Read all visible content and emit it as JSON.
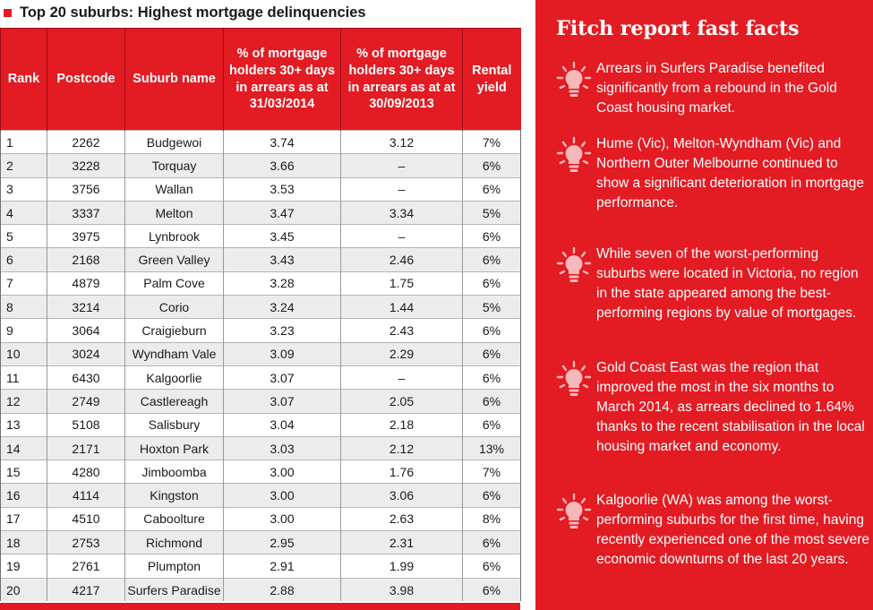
{
  "table_title": "Top 20 suburbs: Highest mortgage delinquencies",
  "columns": {
    "rank": "Rank",
    "postcode": "Postcode",
    "suburb": "Suburb name",
    "pct_2014": "% of mortgage holders 30+ days in arrears as at 31/03/2014",
    "pct_2013": "% of mortgage holders 30+ days in arrears as at at 30/09/2013",
    "rental": "Rental yield"
  },
  "rows": [
    {
      "rank": "1",
      "postcode": "2262",
      "suburb": "Budgewoi",
      "pct_2014": "3.74",
      "pct_2013": "3.12",
      "rental": "7%"
    },
    {
      "rank": "2",
      "postcode": "3228",
      "suburb": "Torquay",
      "pct_2014": "3.66",
      "pct_2013": "–",
      "rental": "6%"
    },
    {
      "rank": "3",
      "postcode": "3756",
      "suburb": "Wallan",
      "pct_2014": "3.53",
      "pct_2013": "–",
      "rental": "6%"
    },
    {
      "rank": "4",
      "postcode": "3337",
      "suburb": "Melton",
      "pct_2014": "3.47",
      "pct_2013": "3.34",
      "rental": "5%"
    },
    {
      "rank": "5",
      "postcode": "3975",
      "suburb": "Lynbrook",
      "pct_2014": "3.45",
      "pct_2013": "–",
      "rental": "6%"
    },
    {
      "rank": "6",
      "postcode": "2168",
      "suburb": "Green Valley",
      "pct_2014": "3.43",
      "pct_2013": "2.46",
      "rental": "6%"
    },
    {
      "rank": "7",
      "postcode": "4879",
      "suburb": "Palm Cove",
      "pct_2014": "3.28",
      "pct_2013": "1.75",
      "rental": "6%"
    },
    {
      "rank": "8",
      "postcode": "3214",
      "suburb": "Corio",
      "pct_2014": "3.24",
      "pct_2013": "1.44",
      "rental": "5%"
    },
    {
      "rank": "9",
      "postcode": "3064",
      "suburb": "Craigieburn",
      "pct_2014": "3.23",
      "pct_2013": "2.43",
      "rental": "6%"
    },
    {
      "rank": "10",
      "postcode": "3024",
      "suburb": "Wyndham Vale",
      "pct_2014": "3.09",
      "pct_2013": "2.29",
      "rental": "6%"
    },
    {
      "rank": "11",
      "postcode": "6430",
      "suburb": "Kalgoorlie",
      "pct_2014": "3.07",
      "pct_2013": "–",
      "rental": "6%"
    },
    {
      "rank": "12",
      "postcode": "2749",
      "suburb": "Castlereagh",
      "pct_2014": "3.07",
      "pct_2013": "2.05",
      "rental": "6%"
    },
    {
      "rank": "13",
      "postcode": "5108",
      "suburb": "Salisbury",
      "pct_2014": "3.04",
      "pct_2013": "2.18",
      "rental": "6%"
    },
    {
      "rank": "14",
      "postcode": "2171",
      "suburb": "Hoxton Park",
      "pct_2014": "3.03",
      "pct_2013": "2.12",
      "rental": "13%"
    },
    {
      "rank": "15",
      "postcode": "4280",
      "suburb": "Jimboomba",
      "pct_2014": "3.00",
      "pct_2013": "1.76",
      "rental": "7%"
    },
    {
      "rank": "16",
      "postcode": "4114",
      "suburb": "Kingston",
      "pct_2014": "3.00",
      "pct_2013": "3.06",
      "rental": "6%"
    },
    {
      "rank": "17",
      "postcode": "4510",
      "suburb": "Caboolture",
      "pct_2014": "3.00",
      "pct_2013": "2.63",
      "rental": "8%"
    },
    {
      "rank": "18",
      "postcode": "2753",
      "suburb": "Richmond",
      "pct_2014": "2.95",
      "pct_2013": "2.31",
      "rental": "6%"
    },
    {
      "rank": "19",
      "postcode": "2761",
      "suburb": "Plumpton",
      "pct_2014": "2.91",
      "pct_2013": "1.99",
      "rental": "6%"
    },
    {
      "rank": "20",
      "postcode": "4217",
      "suburb": "Surfers Paradise",
      "pct_2014": "2.88",
      "pct_2013": "3.98",
      "rental": "6%"
    }
  ],
  "facts_title": "Fitch report fast facts",
  "facts": [
    {
      "icon": "lightbulb-icon",
      "text": "Arrears in Surfers Paradise benefited significantly from a rebound in the Gold Coast housing market."
    },
    {
      "icon": "lightbulb-icon",
      "text": "Hume (Vic), Melton-Wyndham (Vic) and Northern Outer Melbourne continued to show a significant deterioration in mortgage performance."
    },
    {
      "icon": "lightbulb-icon",
      "text": "While seven of the worst-performing suburbs were located in Victoria, no region in the state appeared among the best-performing regions by value of mortgages."
    },
    {
      "icon": "lightbulb-icon",
      "text": "Gold Coast East was the region that improved the most in the six months to March 2014, as arrears declined to 1.64% thanks to the recent stabilisation in the local housing market and economy."
    },
    {
      "icon": "lightbulb-icon",
      "text": "Kalgoorlie (WA) was among the worst-performing suburbs for the first time, having recently experienced one of the most severe economic downturns of the last 20 years."
    }
  ],
  "colors": {
    "accent": "#e31b23",
    "row_alt": "#ececec",
    "icon_fill": "#f6b8ba"
  }
}
